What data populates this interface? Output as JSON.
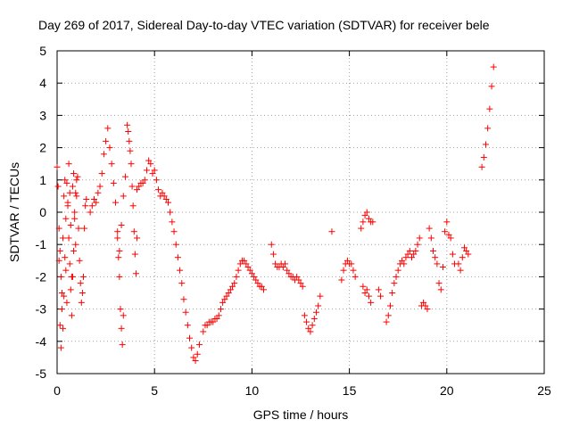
{
  "chart_data": {
    "type": "scatter",
    "title": "Day 269 of 2017, Sidereal Day-to-day VTEC variation (SDTVAR) for receiver bele",
    "xlabel": "GPS time / hours",
    "ylabel": "SDTVAR / TECUs",
    "xlim": [
      0,
      25
    ],
    "ylim": [
      -5,
      5
    ],
    "xticks": [
      0,
      5,
      10,
      15,
      20,
      25
    ],
    "yticks": [
      -5,
      -4,
      -3,
      -2,
      -1,
      0,
      1,
      2,
      3,
      4,
      5
    ],
    "xtick_labels": [
      "0",
      "5",
      "10",
      "15",
      "20",
      "25"
    ],
    "ytick_labels": [
      "-5",
      "-4",
      "-3",
      "-2",
      "-1",
      "0",
      "1",
      "2",
      "3",
      "4",
      "5"
    ],
    "grid": true,
    "marker": "+",
    "marker_color": "#ff0000",
    "series": [
      {
        "name": "SDTVAR",
        "x": [
          0.0,
          0.05,
          0.1,
          0.15,
          0.2,
          0.25,
          0.3,
          0.35,
          0.4,
          0.45,
          0.5,
          0.55,
          0.6,
          0.65,
          0.7,
          0.75,
          0.8,
          0.85,
          0.9,
          0.95,
          1.0,
          1.05,
          1.1,
          1.15,
          1.2,
          1.25,
          1.3,
          1.35,
          1.4,
          1.45,
          1.5,
          0.1,
          0.15,
          0.2,
          0.25,
          0.3,
          0.35,
          0.4,
          0.45,
          0.5,
          0.55,
          0.6,
          0.65,
          0.7,
          0.75,
          0.8,
          0.85,
          0.9,
          0.95,
          1.0,
          1.7,
          1.8,
          1.9,
          2.0,
          2.1,
          2.2,
          2.3,
          2.4,
          2.5,
          2.6,
          2.7,
          2.8,
          2.9,
          3.0,
          3.1,
          3.2,
          3.3,
          3.4,
          3.5,
          3.1,
          3.15,
          3.2,
          3.25,
          3.3,
          3.35,
          3.4,
          3.6,
          3.65,
          3.7,
          3.75,
          3.8,
          3.85,
          3.9,
          3.95,
          4.0,
          4.05,
          4.1,
          4.1,
          4.2,
          4.3,
          4.4,
          4.5,
          4.6,
          4.7,
          4.8,
          4.9,
          5.0,
          5.1,
          5.2,
          5.3,
          5.4,
          5.5,
          5.6,
          5.7,
          5.8,
          5.9,
          6.0,
          6.1,
          6.2,
          6.3,
          6.4,
          6.5,
          6.6,
          6.7,
          6.8,
          6.9,
          7.0,
          7.1,
          7.2,
          7.3,
          7.5,
          7.6,
          7.7,
          7.8,
          7.9,
          8.0,
          8.1,
          8.2,
          8.3,
          8.4,
          8.5,
          8.6,
          8.7,
          8.8,
          8.9,
          9.0,
          9.1,
          9.2,
          9.3,
          9.4,
          9.5,
          9.6,
          9.7,
          9.8,
          9.9,
          10.0,
          10.1,
          10.2,
          10.3,
          10.4,
          10.5,
          10.6,
          11.0,
          11.1,
          11.2,
          11.3,
          11.4,
          11.5,
          11.6,
          11.7,
          11.8,
          11.9,
          12.0,
          12.1,
          12.2,
          12.3,
          12.4,
          12.5,
          12.6,
          12.7,
          12.8,
          12.9,
          13.0,
          13.1,
          13.2,
          13.3,
          13.4,
          13.5,
          14.1,
          14.6,
          14.7,
          14.8,
          14.9,
          15.0,
          15.1,
          15.2,
          15.3,
          15.6,
          15.7,
          15.8,
          15.9,
          16.0,
          16.1,
          16.2,
          15.7,
          15.8,
          15.9,
          16.0,
          16.1,
          16.5,
          16.6,
          16.9,
          17.0,
          17.1,
          17.2,
          17.3,
          17.4,
          17.5,
          17.6,
          17.7,
          17.8,
          17.9,
          18.0,
          18.1,
          18.2,
          18.3,
          18.4,
          18.5,
          18.6,
          18.7,
          18.8,
          18.9,
          19.0,
          19.1,
          19.2,
          19.3,
          19.4,
          19.5,
          19.6,
          19.7,
          19.8,
          19.9,
          20.0,
          20.1,
          20.2,
          20.3,
          20.4,
          20.6,
          20.7,
          20.8,
          20.9,
          21.0,
          21.1,
          21.8,
          21.9,
          22.0,
          22.1,
          22.2,
          22.3,
          22.4
        ],
        "y": [
          1.4,
          0.8,
          -1.5,
          -3.5,
          -4.2,
          -2.5,
          -0.8,
          0.5,
          1.0,
          -1.8,
          -2.8,
          0.3,
          1.5,
          0.6,
          -0.4,
          -2.0,
          0.8,
          1.2,
          -0.2,
          -1.0,
          0.5,
          1.1,
          -0.5,
          -1.5,
          -2.2,
          -2.8,
          -2.5,
          -2.0,
          -0.5,
          0.2,
          0.4,
          -0.5,
          -1.2,
          -2.0,
          -3.0,
          -3.6,
          -2.6,
          -1.4,
          -0.2,
          0.9,
          0.2,
          -0.8,
          -1.6,
          -2.4,
          -3.2,
          -2.0,
          -1.2,
          0.0,
          0.6,
          1.0,
          0.0,
          0.2,
          0.4,
          0.3,
          0.6,
          0.8,
          1.2,
          1.8,
          2.2,
          2.6,
          2.0,
          1.5,
          0.9,
          0.3,
          -0.6,
          -1.2,
          -0.4,
          0.5,
          1.1,
          -0.8,
          -1.4,
          -2.0,
          -3.0,
          -3.6,
          -4.1,
          -3.2,
          2.7,
          2.5,
          2.2,
          1.9,
          1.5,
          0.8,
          0.2,
          -0.6,
          -1.3,
          -1.9,
          -0.8,
          0.7,
          0.8,
          0.9,
          0.9,
          1.0,
          1.3,
          1.6,
          1.5,
          1.2,
          1.3,
          1.0,
          0.7,
          0.5,
          0.6,
          0.5,
          0.4,
          0.3,
          0.0,
          -0.3,
          -0.6,
          -1.0,
          -1.4,
          -1.8,
          -2.2,
          -2.7,
          -3.1,
          -3.5,
          -3.9,
          -4.2,
          -4.5,
          -4.6,
          -4.4,
          -4.1,
          -3.7,
          -3.5,
          -3.5,
          -3.4,
          -3.4,
          -3.4,
          -3.3,
          -3.3,
          -3.2,
          -3.0,
          -2.8,
          -2.7,
          -2.6,
          -2.5,
          -2.4,
          -2.3,
          -2.2,
          -2.0,
          -1.8,
          -1.6,
          -1.5,
          -1.5,
          -1.6,
          -1.7,
          -1.8,
          -1.9,
          -2.0,
          -2.1,
          -2.2,
          -2.3,
          -2.3,
          -2.4,
          -1.0,
          -1.3,
          -1.6,
          -1.7,
          -1.7,
          -1.6,
          -1.7,
          -1.6,
          -1.8,
          -1.9,
          -2.0,
          -2.0,
          -2.1,
          -2.0,
          -2.1,
          -2.2,
          -2.3,
          -3.2,
          -3.4,
          -3.6,
          -3.7,
          -3.5,
          -3.3,
          -3.1,
          -2.9,
          -2.6,
          -0.6,
          -2.1,
          -1.8,
          -1.6,
          -1.5,
          -1.6,
          -1.6,
          -1.8,
          -2.0,
          -0.5,
          -0.3,
          -0.1,
          0.0,
          -0.2,
          -0.3,
          -0.3,
          -2.3,
          -2.5,
          -2.4,
          -2.6,
          -2.8,
          -2.4,
          -2.6,
          -3.4,
          -3.2,
          -2.9,
          -2.5,
          -2.2,
          -2.0,
          -1.8,
          -1.6,
          -1.5,
          -1.6,
          -1.4,
          -1.3,
          -1.2,
          -1.4,
          -1.3,
          -1.2,
          -1.0,
          -0.8,
          -2.9,
          -2.8,
          -2.9,
          -3.0,
          -0.5,
          -0.8,
          -1.2,
          -1.4,
          -1.6,
          -2.2,
          -2.4,
          -1.7,
          -0.6,
          -0.3,
          -0.7,
          -0.8,
          -1.3,
          -1.6,
          -1.6,
          -1.8,
          -1.4,
          -1.1,
          -1.2,
          -1.3,
          1.4,
          1.7,
          2.1,
          2.6,
          3.2,
          3.9,
          4.5
        ]
      }
    ]
  }
}
